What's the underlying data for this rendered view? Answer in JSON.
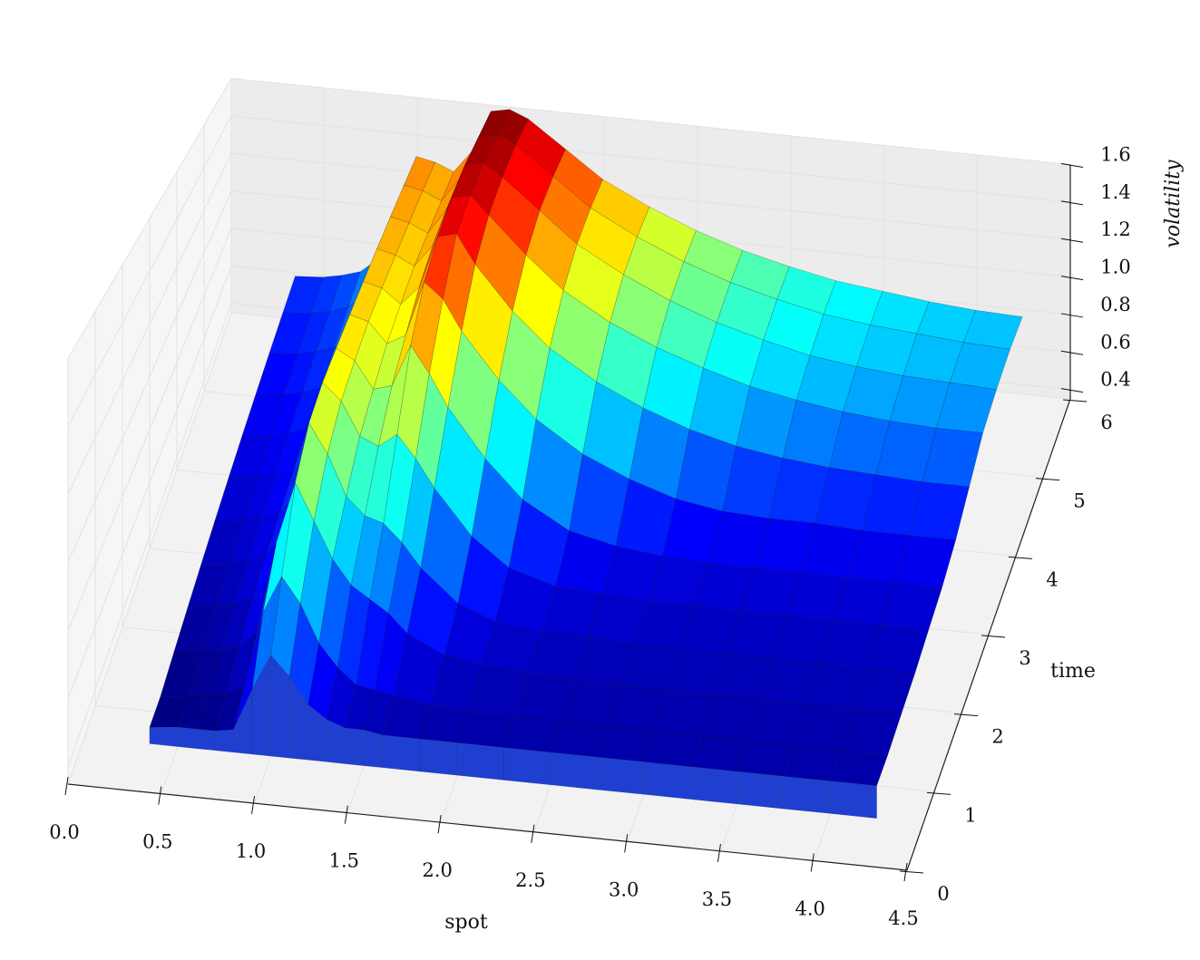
{
  "chart_data": {
    "type": "surface3d",
    "colormap": "jet",
    "colors": {
      "background": "#ffffff",
      "pane": "#f2f2f2",
      "grid": "#e2e2e2",
      "mesh_edge": "#000000"
    },
    "grid": true,
    "xlabel": "spot",
    "ylabel": "time",
    "zlabel": "volatility",
    "x_ticks": [
      "0.0",
      "0.5",
      "1.0",
      "1.5",
      "2.0",
      "2.5",
      "3.0",
      "3.5",
      "4.0",
      "4.5"
    ],
    "y_ticks": [
      "0",
      "1",
      "2",
      "3",
      "4",
      "5",
      "6"
    ],
    "z_ticks": [
      "0.4",
      "0.6",
      "0.8",
      "1.0",
      "1.2",
      "1.4",
      "1.6"
    ],
    "xlim": [
      0.0,
      4.5
    ],
    "ylim": [
      0,
      6
    ],
    "zlim": [
      0.35,
      1.6
    ],
    "surface": {
      "x": [
        0.35,
        0.5,
        0.6,
        0.7,
        0.8,
        0.9,
        1.0,
        1.1,
        1.2,
        1.3,
        1.4,
        1.5,
        1.6,
        1.8,
        2.0,
        2.25,
        2.5,
        2.75,
        3.0,
        3.25,
        3.5,
        3.75,
        4.0,
        4.25
      ],
      "rows": [
        {
          "t": 0.6,
          "z": [
            0.4,
            0.41,
            0.41,
            0.41,
            0.42,
            0.55,
            0.66,
            0.6,
            0.52,
            0.48,
            0.46,
            0.46,
            0.45,
            0.45,
            0.45,
            0.45,
            0.45,
            0.45,
            0.45,
            0.45,
            0.45,
            0.45,
            0.45,
            0.45
          ]
        },
        {
          "t": 1.0,
          "z": [
            0.4,
            0.41,
            0.42,
            0.43,
            0.46,
            0.7,
            0.82,
            0.74,
            0.62,
            0.55,
            0.5,
            0.49,
            0.48,
            0.46,
            0.45,
            0.45,
            0.45,
            0.45,
            0.45,
            0.45,
            0.45,
            0.45,
            0.45,
            0.45
          ]
        },
        {
          "t": 1.5,
          "z": [
            0.42,
            0.43,
            0.44,
            0.46,
            0.52,
            0.82,
            1.02,
            0.9,
            0.78,
            0.7,
            0.66,
            0.62,
            0.56,
            0.5,
            0.48,
            0.47,
            0.46,
            0.46,
            0.46,
            0.46,
            0.46,
            0.46,
            0.46,
            0.46
          ]
        },
        {
          "t": 2.0,
          "z": [
            0.44,
            0.45,
            0.47,
            0.5,
            0.58,
            0.84,
            1.12,
            1.02,
            0.88,
            0.82,
            0.8,
            0.74,
            0.66,
            0.55,
            0.5,
            0.48,
            0.48,
            0.47,
            0.47,
            0.47,
            0.47,
            0.47,
            0.47,
            0.47
          ]
        },
        {
          "t": 2.5,
          "z": [
            0.46,
            0.47,
            0.49,
            0.52,
            0.6,
            0.86,
            1.16,
            1.1,
            0.98,
            0.95,
            1.0,
            0.92,
            0.82,
            0.66,
            0.56,
            0.51,
            0.5,
            0.49,
            0.49,
            0.49,
            0.49,
            0.49,
            0.49,
            0.49
          ]
        },
        {
          "t": 3.0,
          "z": [
            0.48,
            0.49,
            0.51,
            0.54,
            0.62,
            0.88,
            1.18,
            1.14,
            1.04,
            1.06,
            1.22,
            1.12,
            1.0,
            0.82,
            0.68,
            0.58,
            0.54,
            0.52,
            0.51,
            0.51,
            0.51,
            0.51,
            0.51,
            0.51
          ]
        },
        {
          "t": 3.5,
          "z": [
            0.5,
            0.51,
            0.53,
            0.56,
            0.64,
            0.9,
            1.2,
            1.18,
            1.1,
            1.14,
            1.36,
            1.3,
            1.18,
            1.0,
            0.86,
            0.74,
            0.66,
            0.6,
            0.57,
            0.56,
            0.56,
            0.55,
            0.55,
            0.55
          ]
        },
        {
          "t": 4.0,
          "z": [
            0.52,
            0.53,
            0.55,
            0.58,
            0.66,
            0.92,
            1.22,
            1.2,
            1.14,
            1.22,
            1.44,
            1.46,
            1.34,
            1.16,
            1.02,
            0.9,
            0.81,
            0.74,
            0.69,
            0.66,
            0.64,
            0.63,
            0.62,
            0.62
          ]
        },
        {
          "t": 4.5,
          "z": [
            0.54,
            0.55,
            0.57,
            0.6,
            0.68,
            0.94,
            1.24,
            1.22,
            1.18,
            1.28,
            1.5,
            1.52,
            1.44,
            1.28,
            1.14,
            1.02,
            0.93,
            0.86,
            0.8,
            0.76,
            0.73,
            0.71,
            0.7,
            0.7
          ]
        },
        {
          "t": 5.0,
          "z": [
            0.56,
            0.57,
            0.59,
            0.62,
            0.7,
            0.96,
            1.26,
            1.24,
            1.2,
            1.32,
            1.54,
            1.56,
            1.5,
            1.36,
            1.22,
            1.1,
            1.0,
            0.92,
            0.86,
            0.81,
            0.78,
            0.76,
            0.75,
            0.74
          ]
        },
        {
          "t": 5.5,
          "z": [
            0.58,
            0.59,
            0.61,
            0.64,
            0.72,
            0.98,
            1.28,
            1.26,
            1.22,
            1.34,
            1.56,
            1.58,
            1.54,
            1.4,
            1.26,
            1.14,
            1.04,
            0.96,
            0.9,
            0.85,
            0.82,
            0.8,
            0.78,
            0.77
          ]
        },
        {
          "t": 5.95,
          "z": [
            0.6,
            0.61,
            0.63,
            0.66,
            0.74,
            1.0,
            1.3,
            1.28,
            1.24,
            1.36,
            1.58,
            1.6,
            1.56,
            1.42,
            1.28,
            1.16,
            1.06,
            0.98,
            0.92,
            0.87,
            0.84,
            0.81,
            0.79,
            0.78
          ]
        }
      ]
    }
  }
}
